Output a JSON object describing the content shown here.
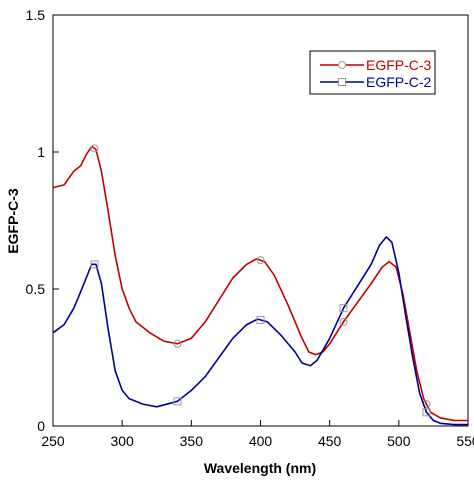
{
  "chart_data": {
    "type": "line",
    "title": "",
    "xlabel": "Wavelength (nm)",
    "ylabel": "EGFP-C-3",
    "xlim": [
      250,
      550
    ],
    "ylim": [
      0,
      1.5
    ],
    "xticks": [
      250,
      300,
      350,
      400,
      450,
      500,
      550
    ],
    "xtick_labels": [
      "250",
      "300",
      "350",
      "400",
      "450",
      "500",
      "550"
    ],
    "yticks": [
      0,
      0.5,
      1,
      1.5
    ],
    "ytick_labels": [
      "0",
      "0.5",
      "1",
      "1.5"
    ],
    "grid": false,
    "legend_position": "top-right",
    "series": [
      {
        "name": "EGFP-C-3",
        "color": "#c00000",
        "marker": "circle-open",
        "marker_x": [
          280,
          340,
          400,
          460,
          520
        ],
        "points": [
          [
            250,
            0.87
          ],
          [
            258,
            0.88
          ],
          [
            265,
            0.93
          ],
          [
            270,
            0.95
          ],
          [
            274,
            0.99
          ],
          [
            278,
            1.02
          ],
          [
            281,
            1.01
          ],
          [
            285,
            0.93
          ],
          [
            290,
            0.78
          ],
          [
            295,
            0.62
          ],
          [
            300,
            0.5
          ],
          [
            305,
            0.43
          ],
          [
            310,
            0.38
          ],
          [
            320,
            0.34
          ],
          [
            330,
            0.31
          ],
          [
            340,
            0.3
          ],
          [
            350,
            0.32
          ],
          [
            360,
            0.38
          ],
          [
            370,
            0.46
          ],
          [
            380,
            0.54
          ],
          [
            390,
            0.59
          ],
          [
            397,
            0.61
          ],
          [
            403,
            0.6
          ],
          [
            410,
            0.55
          ],
          [
            420,
            0.44
          ],
          [
            430,
            0.32
          ],
          [
            435,
            0.27
          ],
          [
            440,
            0.26
          ],
          [
            445,
            0.27
          ],
          [
            450,
            0.3
          ],
          [
            460,
            0.38
          ],
          [
            470,
            0.45
          ],
          [
            480,
            0.52
          ],
          [
            488,
            0.58
          ],
          [
            493,
            0.6
          ],
          [
            498,
            0.58
          ],
          [
            503,
            0.48
          ],
          [
            508,
            0.34
          ],
          [
            513,
            0.2
          ],
          [
            518,
            0.1
          ],
          [
            523,
            0.05
          ],
          [
            530,
            0.03
          ],
          [
            540,
            0.02
          ],
          [
            550,
            0.02
          ]
        ]
      },
      {
        "name": "EGFP-C-2",
        "color": "#00009a",
        "marker": "square-open",
        "marker_x": [
          280,
          340,
          400,
          460,
          520
        ],
        "points": [
          [
            250,
            0.34
          ],
          [
            258,
            0.37
          ],
          [
            265,
            0.43
          ],
          [
            270,
            0.49
          ],
          [
            274,
            0.54
          ],
          [
            278,
            0.59
          ],
          [
            281,
            0.59
          ],
          [
            285,
            0.52
          ],
          [
            290,
            0.35
          ],
          [
            295,
            0.2
          ],
          [
            300,
            0.13
          ],
          [
            305,
            0.1
          ],
          [
            315,
            0.08
          ],
          [
            325,
            0.07
          ],
          [
            340,
            0.09
          ],
          [
            350,
            0.13
          ],
          [
            360,
            0.18
          ],
          [
            370,
            0.25
          ],
          [
            380,
            0.32
          ],
          [
            390,
            0.37
          ],
          [
            398,
            0.39
          ],
          [
            405,
            0.38
          ],
          [
            415,
            0.33
          ],
          [
            425,
            0.27
          ],
          [
            430,
            0.23
          ],
          [
            436,
            0.22
          ],
          [
            441,
            0.24
          ],
          [
            450,
            0.32
          ],
          [
            460,
            0.43
          ],
          [
            470,
            0.51
          ],
          [
            480,
            0.59
          ],
          [
            486,
            0.66
          ],
          [
            491,
            0.69
          ],
          [
            495,
            0.67
          ],
          [
            500,
            0.56
          ],
          [
            505,
            0.4
          ],
          [
            510,
            0.25
          ],
          [
            515,
            0.12
          ],
          [
            520,
            0.05
          ],
          [
            525,
            0.02
          ],
          [
            530,
            0.01
          ],
          [
            540,
            0.005
          ],
          [
            550,
            0.005
          ]
        ]
      }
    ]
  }
}
